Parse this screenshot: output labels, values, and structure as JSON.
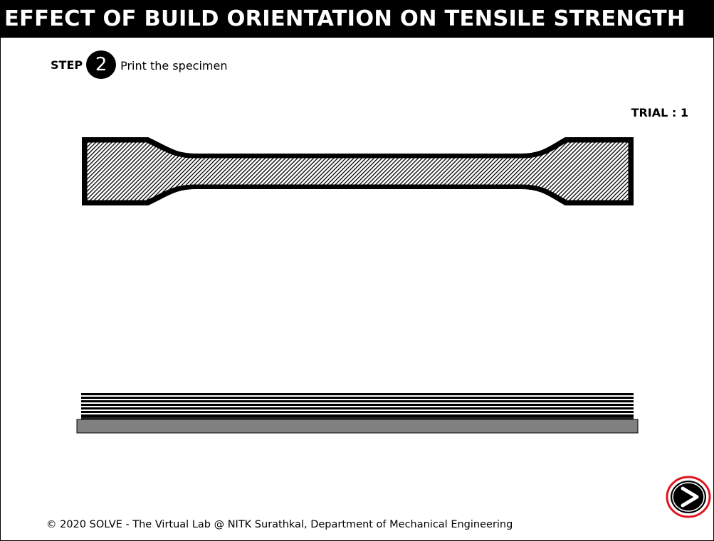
{
  "header": {
    "title": "EFFECT OF BUILD ORIENTATION ON TENSILE STRENGTH"
  },
  "step": {
    "label": "STEP",
    "number": "2",
    "text": "Print the specimen"
  },
  "trial": {
    "text": "TRIAL : 1"
  },
  "specimen": {
    "fill_color": "#333333",
    "outline_color": "#000000"
  },
  "printer": {
    "layer_color": "#000000",
    "bed_color": "#808080"
  },
  "navigation": {
    "next_icon": "chevron-right-icon",
    "ring_color": "#e0141e"
  },
  "footer": {
    "copyright": "© 2020 SOLVE - The Virtual Lab @ NITK Surathkal, Department of Mechanical Engineering"
  }
}
